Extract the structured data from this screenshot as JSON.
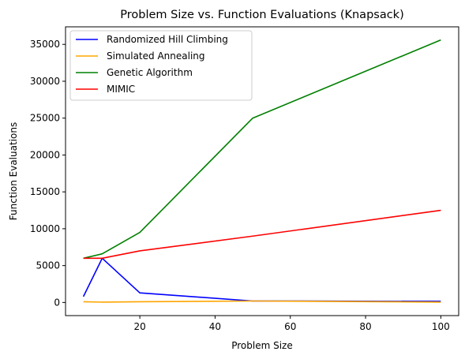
{
  "chart_data": {
    "type": "line",
    "title": "Problem Size vs. Function Evaluations (Knapsack)",
    "xlabel": "Problem Size",
    "ylabel": "Function Evaluations",
    "xlim": [
      0.25,
      104.75
    ],
    "ylim": [
      -1780,
      37380
    ],
    "xticks": [
      20,
      40,
      60,
      80,
      100
    ],
    "yticks": [
      0,
      5000,
      10000,
      15000,
      20000,
      25000,
      30000,
      35000
    ],
    "grid": false,
    "legend_position": "top-left",
    "x": [
      5,
      10,
      20,
      50,
      100
    ],
    "series": [
      {
        "name": "Randomized Hill Climbing",
        "color": "#0000ff",
        "values": [
          800,
          6000,
          1300,
          200,
          150
        ]
      },
      {
        "name": "Simulated Annealing",
        "color": "#ffa500",
        "values": [
          100,
          50,
          100,
          200,
          50
        ]
      },
      {
        "name": "Genetic Algorithm",
        "color": "#008000",
        "values": [
          6000,
          6600,
          9500,
          25000,
          35600
        ]
      },
      {
        "name": "MIMIC",
        "color": "#ff0000",
        "values": [
          6000,
          6000,
          7000,
          9000,
          12500
        ]
      }
    ]
  }
}
